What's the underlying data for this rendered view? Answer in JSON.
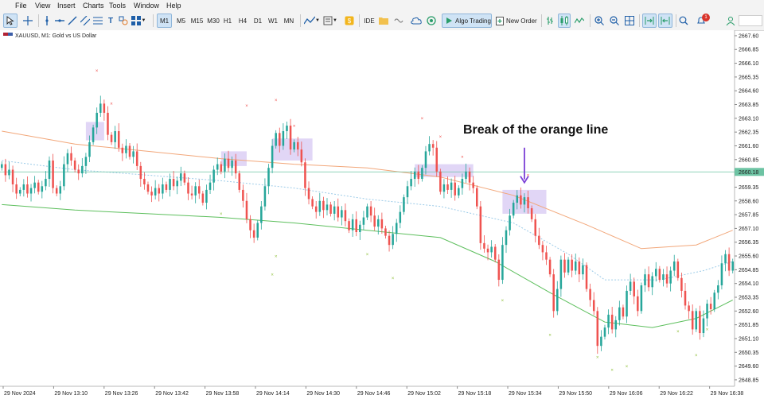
{
  "menu": [
    "File",
    "View",
    "Insert",
    "Charts",
    "Tools",
    "Window",
    "Help"
  ],
  "toolbar": {
    "timeframes": [
      "M1",
      "M5",
      "M15",
      "M30",
      "H1",
      "H4",
      "D1",
      "W1",
      "MN"
    ],
    "selected_timeframe": "M1",
    "ide_label": "IDE",
    "algo_trading_label": "Algo Trading",
    "new_order_label": "New Order",
    "notification_count": "1",
    "icons": [
      "cursor-icon",
      "crosshair-icon",
      "vertical-line-icon",
      "trendline-icon",
      "horizontal-line-icon",
      "equidistant-channel-icon",
      "fibonacci-icon",
      "text-icon",
      "shapes-icon",
      "indicators-icon",
      "templates-icon",
      "market-icon",
      "signals-icon",
      "vps-icon",
      "algo-trading-icon",
      "new-order-icon",
      "one-click-trading-icon",
      "bar-chart-icon",
      "candlestick-icon",
      "line-chart-icon",
      "zoom-in-icon",
      "zoom-out-icon",
      "grid-icon",
      "autoscroll-icon",
      "chart-shift-icon",
      "search-icon",
      "notifications-icon",
      "profile-icon"
    ]
  },
  "chart": {
    "title": "XAUUSD, M1:  Gold vs US Dollar",
    "annotation": "Break of the orange line",
    "current_price_label": "2660.18",
    "colors": {
      "bull": "#26a69a",
      "bear": "#ef5350",
      "orange_ma": "#f2a77a",
      "green_ma": "#5dbf5d",
      "blue_band": "#9ccbe8",
      "highlight": "#c9b4ee",
      "arrow": "#7b3fd6",
      "price_line": "#6dc3a3"
    }
  },
  "chart_data": {
    "type": "candlestick",
    "symbol": "XAUUSD",
    "timeframe": "M1",
    "description": "Gold vs US Dollar",
    "y_ticks": [
      "2667.60",
      "2666.85",
      "2666.10",
      "2665.35",
      "2664.60",
      "2663.85",
      "2663.10",
      "2662.35",
      "2661.60",
      "2660.85",
      "2660.10",
      "2659.35",
      "2658.60",
      "2657.85",
      "2657.10",
      "2656.35",
      "2655.60",
      "2654.85",
      "2654.10",
      "2653.35",
      "2652.60",
      "2651.85",
      "2651.10",
      "2650.35",
      "2649.60",
      "2648.85"
    ],
    "x_ticks": [
      "29 Nov 2024",
      "29 Nov 13:10",
      "29 Nov 13:26",
      "29 Nov 13:42",
      "29 Nov 13:58",
      "29 Nov 14:14",
      "29 Nov 14:30",
      "29 Nov 14:46",
      "29 Nov 15:02",
      "29 Nov 15:18",
      "29 Nov 15:34",
      "29 Nov 15:50",
      "29 Nov 16:06",
      "29 Nov 16:22",
      "29 Nov 16:38"
    ],
    "ylim": [
      2648.5,
      2667.9
    ],
    "current_price": 2660.18,
    "candles": [
      {
        "t": 0,
        "c": 2660.6
      },
      {
        "t": 1,
        "c": 2660.0
      },
      {
        "t": 2,
        "c": 2660.3
      },
      {
        "t": 3,
        "c": 2659.5
      },
      {
        "t": 4,
        "c": 2659.0
      },
      {
        "t": 5,
        "c": 2659.2
      },
      {
        "t": 6,
        "c": 2659.5
      },
      {
        "t": 7,
        "c": 2659.0
      },
      {
        "t": 8,
        "c": 2659.3
      },
      {
        "t": 9,
        "c": 2659.6
      },
      {
        "t": 10,
        "c": 2659.1
      },
      {
        "t": 11,
        "c": 2659.4
      },
      {
        "t": 12,
        "c": 2659.8
      },
      {
        "t": 13,
        "c": 2660.8
      },
      {
        "t": 14,
        "c": 2659.3
      },
      {
        "t": 15,
        "c": 2659.0
      },
      {
        "t": 16,
        "c": 2659.4
      },
      {
        "t": 17,
        "c": 2660.6
      },
      {
        "t": 18,
        "c": 2661.2
      },
      {
        "t": 19,
        "c": 2660.8
      },
      {
        "t": 20,
        "c": 2660.3
      },
      {
        "t": 21,
        "c": 2660.1
      },
      {
        "t": 22,
        "c": 2660.5
      },
      {
        "t": 23,
        "c": 2661.0
      },
      {
        "t": 24,
        "c": 2661.8
      },
      {
        "t": 25,
        "c": 2662.6
      },
      {
        "t": 26,
        "c": 2663.4
      },
      {
        "t": 27,
        "c": 2663.9
      },
      {
        "t": 28,
        "c": 2663.4
      },
      {
        "t": 29,
        "c": 2662.2
      },
      {
        "t": 30,
        "c": 2661.8
      },
      {
        "t": 31,
        "c": 2662.4
      },
      {
        "t": 32,
        "c": 2661.5
      },
      {
        "t": 33,
        "c": 2661.2
      },
      {
        "t": 34,
        "c": 2661.6
      },
      {
        "t": 35,
        "c": 2661.0
      },
      {
        "t": 36,
        "c": 2661.3
      },
      {
        "t": 37,
        "c": 2660.5
      },
      {
        "t": 38,
        "c": 2659.8
      },
      {
        "t": 39,
        "c": 2659.5
      },
      {
        "t": 40,
        "c": 2659.1
      },
      {
        "t": 41,
        "c": 2658.9
      },
      {
        "t": 42,
        "c": 2659.3
      },
      {
        "t": 43,
        "c": 2659.0
      },
      {
        "t": 44,
        "c": 2659.5
      },
      {
        "t": 45,
        "c": 2659.2
      },
      {
        "t": 46,
        "c": 2659.8
      },
      {
        "t": 47,
        "c": 2659.4
      },
      {
        "t": 48,
        "c": 2659.7
      },
      {
        "t": 49,
        "c": 2660.1
      },
      {
        "t": 50,
        "c": 2659.6
      },
      {
        "t": 51,
        "c": 2659.0
      },
      {
        "t": 52,
        "c": 2658.9
      },
      {
        "t": 53,
        "c": 2659.4
      },
      {
        "t": 54,
        "c": 2659.0
      },
      {
        "t": 55,
        "c": 2658.5
      },
      {
        "t": 56,
        "c": 2659.2
      },
      {
        "t": 57,
        "c": 2659.6
      },
      {
        "t": 58,
        "c": 2660.3
      },
      {
        "t": 59,
        "c": 2660.6
      },
      {
        "t": 60,
        "c": 2660.2
      },
      {
        "t": 61,
        "c": 2660.9
      },
      {
        "t": 62,
        "c": 2660.4
      },
      {
        "t": 63,
        "c": 2660.8
      },
      {
        "t": 64,
        "c": 2660.1
      },
      {
        "t": 65,
        "c": 2659.2
      },
      {
        "t": 66,
        "c": 2658.6
      },
      {
        "t": 67,
        "c": 2657.6
      },
      {
        "t": 68,
        "c": 2657.0
      },
      {
        "t": 69,
        "c": 2656.6
      },
      {
        "t": 70,
        "c": 2657.4
      },
      {
        "t": 71,
        "c": 2658.3
      },
      {
        "t": 72,
        "c": 2659.4
      },
      {
        "t": 73,
        "c": 2660.4
      },
      {
        "t": 74,
        "c": 2661.6
      },
      {
        "t": 75,
        "c": 2662.3
      },
      {
        "t": 76,
        "c": 2661.6
      },
      {
        "t": 77,
        "c": 2662.4
      },
      {
        "t": 78,
        "c": 2662.7
      },
      {
        "t": 79,
        "c": 2661.4
      },
      {
        "t": 80,
        "c": 2661.8
      },
      {
        "t": 81,
        "c": 2661.4
      },
      {
        "t": 82,
        "c": 2660.7
      },
      {
        "t": 83,
        "c": 2659.3
      },
      {
        "t": 84,
        "c": 2658.7
      },
      {
        "t": 85,
        "c": 2658.3
      },
      {
        "t": 86,
        "c": 2658.0
      },
      {
        "t": 87,
        "c": 2658.6
      },
      {
        "t": 88,
        "c": 2658.1
      },
      {
        "t": 89,
        "c": 2658.4
      },
      {
        "t": 90,
        "c": 2657.9
      },
      {
        "t": 91,
        "c": 2658.3
      },
      {
        "t": 92,
        "c": 2657.7
      },
      {
        "t": 93,
        "c": 2658.1
      },
      {
        "t": 94,
        "c": 2657.5
      },
      {
        "t": 95,
        "c": 2657.0
      },
      {
        "t": 96,
        "c": 2657.6
      },
      {
        "t": 97,
        "c": 2656.9
      },
      {
        "t": 98,
        "c": 2657.3
      },
      {
        "t": 99,
        "c": 2657.7
      },
      {
        "t": 100,
        "c": 2658.3
      },
      {
        "t": 101,
        "c": 2657.8
      },
      {
        "t": 102,
        "c": 2657.2
      },
      {
        "t": 103,
        "c": 2657.6
      },
      {
        "t": 104,
        "c": 2657.1
      },
      {
        "t": 105,
        "c": 2656.7
      },
      {
        "t": 106,
        "c": 2656.2
      },
      {
        "t": 107,
        "c": 2656.8
      },
      {
        "t": 108,
        "c": 2657.4
      },
      {
        "t": 109,
        "c": 2658.0
      },
      {
        "t": 110,
        "c": 2658.8
      },
      {
        "t": 111,
        "c": 2659.4
      },
      {
        "t": 112,
        "c": 2659.8
      },
      {
        "t": 113,
        "c": 2660.2
      },
      {
        "t": 114,
        "c": 2659.8
      },
      {
        "t": 115,
        "c": 2660.4
      },
      {
        "t": 116,
        "c": 2661.3
      },
      {
        "t": 117,
        "c": 2661.7
      },
      {
        "t": 118,
        "c": 2661.5
      },
      {
        "t": 119,
        "c": 2660.2
      },
      {
        "t": 120,
        "c": 2659.1
      },
      {
        "t": 121,
        "c": 2659.5
      },
      {
        "t": 122,
        "c": 2659.2
      },
      {
        "t": 123,
        "c": 2659.6
      },
      {
        "t": 124,
        "c": 2658.9
      },
      {
        "t": 125,
        "c": 2659.3
      },
      {
        "t": 126,
        "c": 2659.8
      },
      {
        "t": 127,
        "c": 2660.2
      },
      {
        "t": 128,
        "c": 2659.6
      },
      {
        "t": 129,
        "c": 2659.3
      },
      {
        "t": 130,
        "c": 2658.3
      },
      {
        "t": 131,
        "c": 2656.3
      },
      {
        "t": 132,
        "c": 2656.0
      },
      {
        "t": 133,
        "c": 2655.8
      },
      {
        "t": 134,
        "c": 2656.1
      },
      {
        "t": 135,
        "c": 2655.4
      },
      {
        "t": 136,
        "c": 2654.3
      },
      {
        "t": 137,
        "c": 2656.2
      },
      {
        "t": 138,
        "c": 2657.0
      },
      {
        "t": 139,
        "c": 2657.8
      },
      {
        "t": 140,
        "c": 2658.5
      },
      {
        "t": 141,
        "c": 2658.9
      },
      {
        "t": 142,
        "c": 2658.4
      },
      {
        "t": 143,
        "c": 2658.8
      },
      {
        "t": 144,
        "c": 2658.2
      },
      {
        "t": 145,
        "c": 2657.6
      },
      {
        "t": 146,
        "c": 2656.7
      },
      {
        "t": 147,
        "c": 2656.2
      },
      {
        "t": 148,
        "c": 2655.8
      },
      {
        "t": 149,
        "c": 2655.4
      },
      {
        "t": 150,
        "c": 2654.6
      },
      {
        "t": 151,
        "c": 2652.6
      },
      {
        "t": 152,
        "c": 2653.8
      },
      {
        "t": 153,
        "c": 2655.4
      },
      {
        "t": 154,
        "c": 2654.7
      },
      {
        "t": 155,
        "c": 2655.4
      },
      {
        "t": 156,
        "c": 2654.8
      },
      {
        "t": 157,
        "c": 2655.3
      },
      {
        "t": 158,
        "c": 2654.6
      },
      {
        "t": 159,
        "c": 2655.1
      },
      {
        "t": 160,
        "c": 2653.8
      },
      {
        "t": 161,
        "c": 2653.2
      },
      {
        "t": 162,
        "c": 2652.6
      },
      {
        "t": 163,
        "c": 2650.7
      },
      {
        "t": 164,
        "c": 2651.2
      },
      {
        "t": 165,
        "c": 2651.7
      },
      {
        "t": 166,
        "c": 2652.4
      },
      {
        "t": 167,
        "c": 2651.6
      },
      {
        "t": 168,
        "c": 2652.1
      },
      {
        "t": 169,
        "c": 2652.8
      },
      {
        "t": 170,
        "c": 2652.3
      },
      {
        "t": 171,
        "c": 2653.7
      },
      {
        "t": 172,
        "c": 2654.2
      },
      {
        "t": 173,
        "c": 2653.4
      },
      {
        "t": 174,
        "c": 2652.6
      },
      {
        "t": 175,
        "c": 2654.0
      },
      {
        "t": 176,
        "c": 2654.6
      },
      {
        "t": 177,
        "c": 2653.9
      },
      {
        "t": 178,
        "c": 2654.5
      },
      {
        "t": 179,
        "c": 2654.9
      },
      {
        "t": 180,
        "c": 2654.3
      },
      {
        "t": 181,
        "c": 2654.6
      },
      {
        "t": 182,
        "c": 2654.1
      },
      {
        "t": 183,
        "c": 2654.8
      },
      {
        "t": 184,
        "c": 2655.3
      },
      {
        "t": 185,
        "c": 2654.4
      },
      {
        "t": 186,
        "c": 2653.7
      },
      {
        "t": 187,
        "c": 2652.9
      },
      {
        "t": 188,
        "c": 2652.6
      },
      {
        "t": 189,
        "c": 2651.6
      },
      {
        "t": 190,
        "c": 2652.6
      },
      {
        "t": 191,
        "c": 2651.4
      },
      {
        "t": 192,
        "c": 2652.2
      },
      {
        "t": 193,
        "c": 2653.0
      },
      {
        "t": 194,
        "c": 2652.7
      },
      {
        "t": 195,
        "c": 2653.6
      },
      {
        "t": 196,
        "c": 2654.0
      },
      {
        "t": 197,
        "c": 2655.2
      },
      {
        "t": 198,
        "c": 2655.7
      },
      {
        "t": 199,
        "c": 2654.8
      },
      {
        "t": 200,
        "c": 2655.3
      }
    ],
    "orange_ma": [
      [
        0,
        2662.4
      ],
      [
        20,
        2661.7
      ],
      [
        40,
        2661.3
      ],
      [
        60,
        2660.9
      ],
      [
        80,
        2660.6
      ],
      [
        100,
        2660.4
      ],
      [
        120,
        2659.9
      ],
      [
        140,
        2658.9
      ],
      [
        160,
        2657.3
      ],
      [
        175,
        2656.0
      ],
      [
        190,
        2656.2
      ],
      [
        200,
        2657.0
      ]
    ],
    "green_ma": [
      [
        0,
        2658.4
      ],
      [
        20,
        2658.1
      ],
      [
        40,
        2657.9
      ],
      [
        60,
        2657.7
      ],
      [
        80,
        2657.4
      ],
      [
        100,
        2657.0
      ],
      [
        120,
        2656.6
      ],
      [
        135,
        2655.3
      ],
      [
        150,
        2653.6
      ],
      [
        165,
        2652.0
      ],
      [
        178,
        2651.7
      ],
      [
        190,
        2652.2
      ],
      [
        200,
        2653.2
      ]
    ],
    "blue_band": [
      [
        0,
        2660.8
      ],
      [
        20,
        2660.3
      ],
      [
        40,
        2660.0
      ],
      [
        60,
        2659.7
      ],
      [
        80,
        2659.3
      ],
      [
        100,
        2658.7
      ],
      [
        120,
        2658.3
      ],
      [
        140,
        2657.4
      ],
      [
        155,
        2655.7
      ],
      [
        165,
        2654.3
      ],
      [
        180,
        2654.3
      ],
      [
        192,
        2654.8
      ],
      [
        200,
        2655.3
      ]
    ],
    "highlight_zones": [
      [
        23,
        28,
        2662.9,
        2661.9
      ],
      [
        60,
        67,
        2661.3,
        2660.5
      ],
      [
        74,
        85,
        2662.0,
        2660.8
      ],
      [
        113,
        129,
        2660.6,
        2659.9
      ],
      [
        137,
        149,
        2659.2,
        2657.9
      ]
    ],
    "annotation_arrow": {
      "t": 143,
      "from": 2661.5,
      "to": 2659.6
    }
  }
}
